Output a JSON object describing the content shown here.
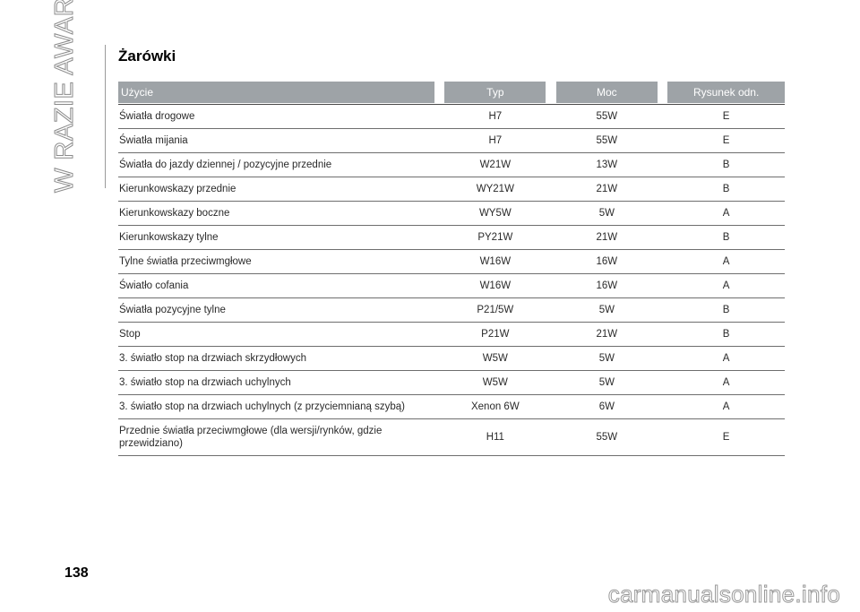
{
  "side_title": "W RAZIE AWARII",
  "heading": "Żarówki",
  "table": {
    "headers": {
      "use": "Użycie",
      "type": "Typ",
      "power": "Moc",
      "figure": "Rysunek odn."
    },
    "rows": [
      {
        "use": "Światła drogowe",
        "type": "H7",
        "power": "55W",
        "figure": "E"
      },
      {
        "use": "Światła mijania",
        "type": "H7",
        "power": "55W",
        "figure": "E"
      },
      {
        "use": "Światła do jazdy dziennej / pozycyjne przednie",
        "type": "W21W",
        "power": "13W",
        "figure": "B"
      },
      {
        "use": "Kierunkowskazy przednie",
        "type": "WY21W",
        "power": "21W",
        "figure": "B"
      },
      {
        "use": "Kierunkowskazy boczne",
        "type": "WY5W",
        "power": "5W",
        "figure": "A"
      },
      {
        "use": "Kierunkowskazy tylne",
        "type": "PY21W",
        "power": "21W",
        "figure": "B"
      },
      {
        "use": "Tylne światła przeciwmgłowe",
        "type": "W16W",
        "power": "16W",
        "figure": "A"
      },
      {
        "use": "Światło cofania",
        "type": "W16W",
        "power": "16W",
        "figure": "A"
      },
      {
        "use": "Światła pozycyjne tylne",
        "type": "P21/5W",
        "power": "5W",
        "figure": "B"
      },
      {
        "use": "Stop",
        "type": "P21W",
        "power": "21W",
        "figure": "B"
      },
      {
        "use": "3. światło stop na drzwiach skrzydłowych",
        "type": "W5W",
        "power": "5W",
        "figure": "A"
      },
      {
        "use": "3. światło stop na drzwiach uchylnych",
        "type": "W5W",
        "power": "5W",
        "figure": "A"
      },
      {
        "use": "3. światło stop na drzwiach uchylnych (z przyciemnianą szybą)",
        "type": "Xenon 6W",
        "power": "6W",
        "figure": "A"
      },
      {
        "use_line1": "Przednie światła przeciwmgłowe (dla wersji/rynków, gdzie",
        "use_line2": "przewidziano)",
        "type": "H11",
        "power": "55W",
        "figure": "E"
      }
    ]
  },
  "page_number": "138",
  "watermark": "carmanualsonline.info"
}
